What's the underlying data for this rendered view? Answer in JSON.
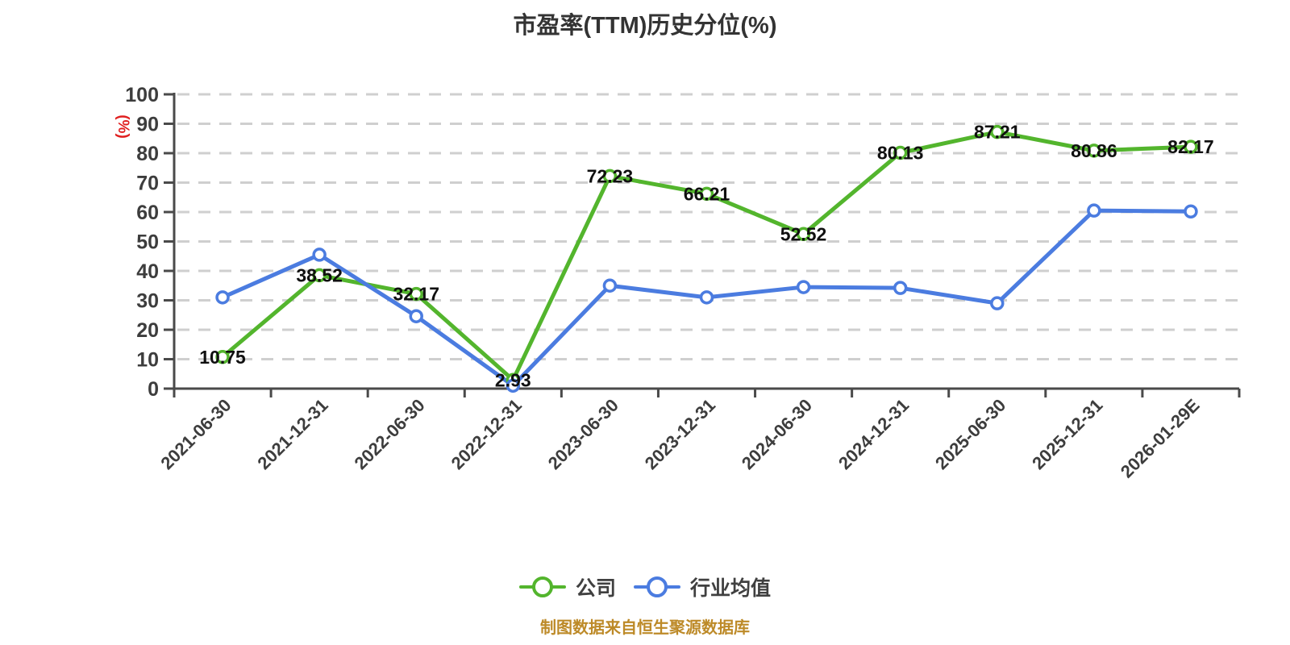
{
  "title": "市盈率(TTM)历史分位(%)",
  "source_note": "制图数据来自恒生聚源数据库",
  "y_axis": {
    "unit": "(%)",
    "min": 0,
    "max": 100,
    "step": 10
  },
  "legend": {
    "position": "bottom",
    "items": [
      {
        "label": "公司",
        "color": "#53b52d"
      },
      {
        "label": "行业均值",
        "color": "#4b7ce0"
      }
    ]
  },
  "colors": {
    "company_line": "#53b52d",
    "industry_line": "#4b7ce0",
    "grid_line": "#cfcfcf",
    "axis_line": "#4a4a4a",
    "tick_text": "#3d3d3d",
    "point_label_text": "#101010",
    "title_text": "#333333",
    "legend_text": "#404040",
    "source_text": "#bd8a28",
    "unit_text": "#e02020",
    "marker_fill": "#ffffff"
  },
  "chart_data": {
    "type": "line",
    "title": "市盈率(TTM)历史分位(%)",
    "ylabel": "(%)",
    "xlabel": "",
    "ylim": [
      0,
      100
    ],
    "y_step": 10,
    "grid": "horizontal-dashed",
    "legend_position": "bottom",
    "categories": [
      "2021-06-30",
      "2021-12-31",
      "2022-06-30",
      "2022-12-31",
      "2023-06-30",
      "2023-12-31",
      "2024-06-30",
      "2024-12-31",
      "2025-06-30",
      "2025-12-31",
      "2026-01-29E"
    ],
    "series": [
      {
        "name": "公司",
        "color": "#53b52d",
        "values": [
          10.75,
          38.52,
          32.17,
          2.93,
          72.23,
          66.21,
          52.52,
          80.13,
          87.21,
          80.86,
          82.17
        ],
        "point_labels": [
          "10.75",
          "38.52",
          "32.17",
          "2.93",
          "72.23",
          "66.21",
          "52.52",
          "80.13",
          "87.21",
          "80.86",
          "82.17"
        ]
      },
      {
        "name": "行业均值",
        "color": "#4b7ce0",
        "values": [
          31,
          45.5,
          24.6,
          1,
          35,
          31,
          34.5,
          34.2,
          29,
          60.5,
          60.2
        ],
        "point_labels": null
      }
    ]
  }
}
